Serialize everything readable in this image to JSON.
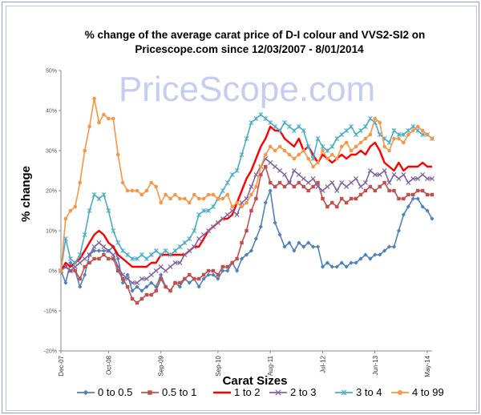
{
  "chart_data": {
    "type": "line",
    "title_line1": "% change of the average carat price of  D-I colour and VVS2-SI2  on",
    "title_line2": "Pricescope.com since 12/03/2007 - 8/01/2014",
    "watermark": "PriceScope.com",
    "xlabel": "Carat Sizes",
    "ylabel": "% change",
    "ylim": [
      -20,
      50
    ],
    "y_ticks": [
      "50%",
      "40%",
      "30%",
      "20%",
      "10%",
      "0%",
      "-10%",
      "-20%"
    ],
    "x_ticks": [
      "Dec-07",
      "Oct-08",
      "Sep-09",
      "Sep-10",
      "Aug-11",
      "Jul-12",
      "Jun-13",
      "May-14"
    ],
    "x_tick_index": [
      0,
      10,
      21,
      33,
      44,
      55,
      66,
      77
    ],
    "grid": false,
    "legend_position": "bottom",
    "series": [
      {
        "name": "0 to 0.5",
        "color": "#4f81bd",
        "marker": "diamond",
        "values": [
          0,
          -3,
          2,
          0,
          -4,
          -1,
          4,
          5,
          5,
          5,
          5,
          6,
          3,
          -3,
          -1,
          -5,
          -4,
          -5,
          -4,
          -3,
          -4,
          -1,
          -4,
          -5,
          -3,
          -4,
          -2,
          -3,
          -2,
          -4,
          -2,
          -1,
          -1,
          -2,
          0,
          0,
          2,
          0,
          3,
          4,
          5,
          8,
          11,
          17,
          20,
          12,
          9,
          6,
          7,
          5,
          7,
          6,
          7,
          6,
          6,
          1,
          2,
          1,
          1,
          2,
          1,
          2,
          2,
          3,
          4,
          3,
          4,
          4,
          5,
          6,
          6,
          10,
          14,
          16,
          18,
          18,
          16,
          15,
          13
        ]
      },
      {
        "name": "0.5  to 1",
        "color": "#c0504d",
        "marker": "square",
        "values": [
          0,
          1,
          0,
          0,
          -2,
          1,
          2,
          3,
          3,
          4,
          3,
          3,
          0,
          -2,
          -4,
          -7,
          -8,
          -7,
          -6,
          -6,
          -5,
          -2,
          -4,
          -5,
          -3,
          -3,
          -2,
          -1,
          -2,
          -2,
          -1,
          0,
          0,
          -1,
          1,
          1,
          2,
          3,
          7,
          10,
          15,
          18,
          24,
          26,
          22,
          21,
          22,
          21,
          22,
          21,
          22,
          21,
          20,
          21,
          22,
          18,
          16,
          17,
          16,
          18,
          17,
          18,
          18,
          19,
          20,
          21,
          20,
          21,
          22,
          20,
          20,
          18,
          18,
          19,
          19,
          20,
          20,
          19,
          19
        ]
      },
      {
        "name": "1 to 2",
        "color": "#ff0000",
        "marker": "none",
        "values": [
          0,
          2,
          1,
          2,
          3,
          5,
          7,
          9,
          10,
          9,
          7,
          6,
          4,
          3,
          2,
          1,
          1,
          1,
          1,
          2,
          2,
          4,
          4,
          4,
          4,
          4,
          4,
          5,
          6,
          6,
          8,
          10,
          11,
          12,
          13,
          13,
          14,
          17,
          20,
          23,
          25,
          28,
          31,
          33,
          36,
          35,
          35,
          33,
          32,
          31,
          33,
          30,
          31,
          29,
          27,
          29,
          28,
          27,
          28,
          29,
          28,
          29,
          29,
          30,
          29,
          31,
          32,
          30,
          27,
          26,
          25,
          27,
          25,
          26,
          26,
          26,
          27,
          26,
          26
        ]
      },
      {
        "name": "2 to 3",
        "color": "#8064a2",
        "marker": "x",
        "values": [
          0,
          1,
          0,
          1,
          2,
          3,
          4,
          6,
          7,
          6,
          5,
          4,
          1,
          -1,
          -2,
          -3,
          -3,
          -2,
          -2,
          -1,
          0,
          1,
          0,
          1,
          2,
          2,
          4,
          5,
          6,
          8,
          9,
          10,
          11,
          12,
          13,
          14,
          15,
          14,
          17,
          18,
          21,
          24,
          26,
          28,
          27,
          26,
          25,
          24,
          22,
          25,
          24,
          23,
          22,
          23,
          21,
          20,
          21,
          22,
          20,
          22,
          21,
          22,
          23,
          21,
          22,
          25,
          24,
          24,
          25,
          22,
          24,
          23,
          24,
          22,
          23,
          23,
          24,
          23,
          23
        ]
      },
      {
        "name": "3 to 4",
        "color": "#4bacc6",
        "marker": "asterisk",
        "values": [
          0,
          8,
          3,
          2,
          4,
          9,
          15,
          19,
          18,
          19,
          15,
          10,
          7,
          5,
          4,
          3,
          3,
          4,
          3,
          4,
          5,
          4,
          5,
          4,
          5,
          6,
          7,
          8,
          10,
          14,
          15,
          15,
          16,
          18,
          20,
          22,
          24,
          25,
          29,
          33,
          37,
          38,
          39,
          38,
          37,
          36,
          35,
          37,
          36,
          35,
          36,
          35,
          31,
          28,
          33,
          31,
          30,
          31,
          33,
          34,
          35,
          36,
          34,
          35,
          36,
          38,
          37,
          34,
          33,
          32,
          35,
          34,
          34,
          35,
          36,
          35,
          34,
          34,
          33
        ]
      },
      {
        "name": "4 to 99",
        "color": "#f79646",
        "marker": "circle",
        "values": [
          0,
          13,
          15,
          16,
          22,
          30,
          36,
          43,
          37,
          39,
          38,
          38,
          29,
          22,
          20,
          20,
          20,
          19,
          20,
          22,
          21,
          17,
          19,
          18,
          19,
          18,
          18,
          17,
          19,
          18,
          18,
          19,
          19,
          18,
          18,
          19,
          16,
          17,
          16,
          17,
          19,
          21,
          26,
          29,
          31,
          30,
          31,
          30,
          29,
          28,
          29,
          30,
          28,
          26,
          27,
          30,
          28,
          29,
          28,
          31,
          32,
          30,
          31,
          32,
          33,
          34,
          38,
          37,
          31,
          30,
          33,
          33,
          32,
          34,
          35,
          36,
          35,
          34,
          33
        ]
      }
    ]
  }
}
